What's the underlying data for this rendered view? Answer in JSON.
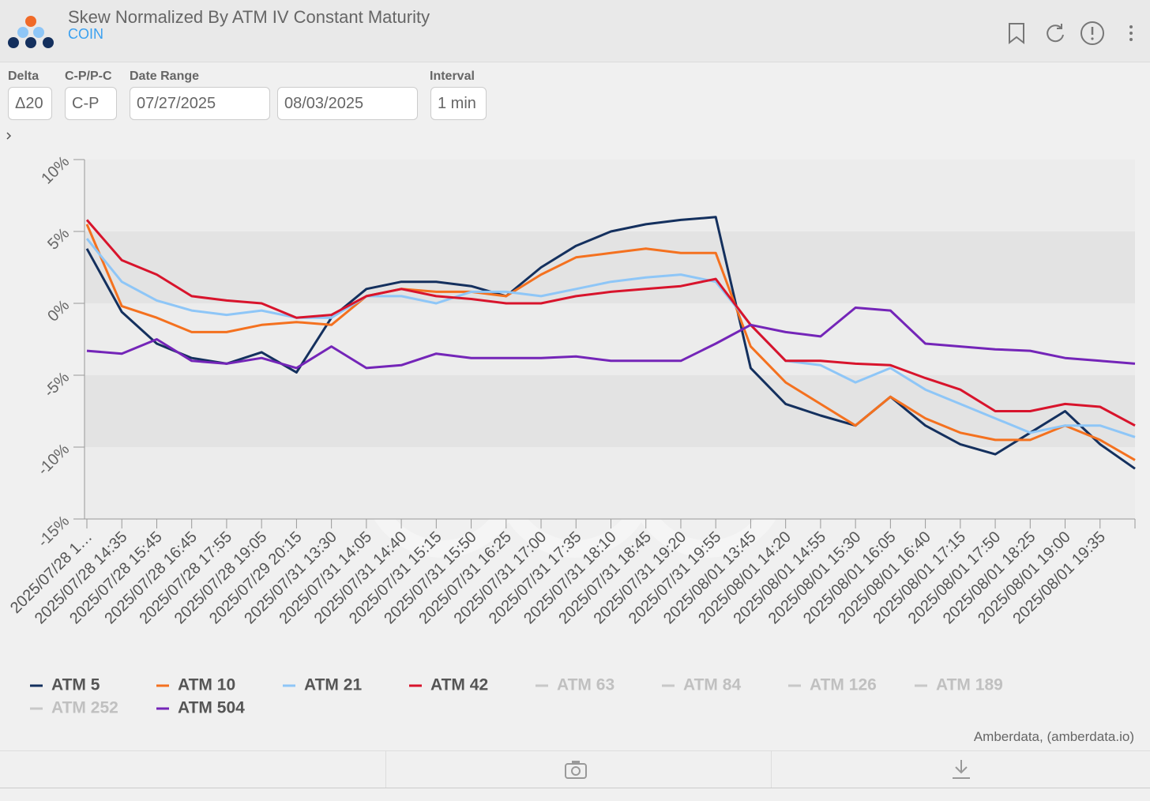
{
  "header": {
    "title": "Skew Normalized By ATM IV Constant Maturity",
    "subtitle": "COIN"
  },
  "controls": [
    {
      "label": "Delta",
      "value": "Δ20"
    },
    {
      "label": "C-P/P-C",
      "value": "C-P"
    },
    {
      "label": "Date Range",
      "value": "07/27/2025"
    },
    {
      "value": "08/03/2025"
    },
    {
      "label": "Interval",
      "value": "1 min"
    }
  ],
  "chart_data": {
    "type": "line",
    "categories": [
      "2025/07/28 1…",
      "2025/07/28 14:35",
      "2025/07/28 15:45",
      "2025/07/28 16:45",
      "2025/07/28 17:55",
      "2025/07/28 19:05",
      "2025/07/29 20:15",
      "2025/07/31 13:30",
      "2025/07/31 14:05",
      "2025/07/31 14:40",
      "2025/07/31 15:15",
      "2025/07/31 15:50",
      "2025/07/31 16:25",
      "2025/07/31 17:00",
      "2025/07/31 17:35",
      "2025/07/31 18:10",
      "2025/07/31 18:45",
      "2025/07/31 19:20",
      "2025/07/31 19:55",
      "2025/08/01 13:45",
      "2025/08/01 14:20",
      "2025/08/01 14:55",
      "2025/08/01 15:30",
      "2025/08/01 16:05",
      "2025/08/01 16:40",
      "2025/08/01 17:15",
      "2025/08/01 17:50",
      "2025/08/01 18:25",
      "2025/08/01 19:00",
      "2025/08/01 19:35",
      null
    ],
    "series": [
      {
        "name": "ATM 5",
        "color": "#14305e",
        "values": [
          3.8,
          -0.6,
          -2.8,
          -3.8,
          -4.2,
          -3.4,
          -4.8,
          -1.0,
          1.0,
          1.5,
          1.5,
          1.2,
          0.5,
          2.5,
          4.0,
          5.0,
          5.5,
          5.8,
          6.0,
          -4.5,
          -7.0,
          -7.8,
          -8.5,
          -6.5,
          -8.5,
          -9.8,
          -10.5,
          -9.0,
          -7.5,
          -9.8,
          -11.5
        ]
      },
      {
        "name": "ATM 10",
        "color": "#f4711f",
        "values": [
          5.5,
          -0.2,
          -1.0,
          -2.0,
          -2.0,
          -1.5,
          -1.3,
          -1.5,
          0.5,
          1.0,
          0.8,
          0.8,
          0.5,
          2.0,
          3.2,
          3.5,
          3.8,
          3.5,
          3.5,
          -3.0,
          -5.5,
          -7.0,
          -8.5,
          -6.5,
          -8.0,
          -9.0,
          -9.5,
          -9.5,
          -8.5,
          -9.5,
          -10.9
        ]
      },
      {
        "name": "ATM 21",
        "color": "#8ec6f7",
        "values": [
          4.5,
          1.5,
          0.2,
          -0.5,
          -0.8,
          -0.5,
          -1.0,
          -1.0,
          0.5,
          0.5,
          0,
          0.8,
          0.8,
          0.5,
          1.0,
          1.5,
          1.8,
          2.0,
          1.5,
          -1.5,
          -4.0,
          -4.3,
          -5.5,
          -4.5,
          -6.0,
          -7.0,
          -8.0,
          -9.0,
          -8.5,
          -8.5,
          -9.3
        ]
      },
      {
        "name": "ATM 42",
        "color": "#d8142c",
        "values": [
          5.8,
          3.0,
          2.0,
          0.5,
          0.2,
          0,
          -1.0,
          -0.8,
          0.5,
          1.0,
          0.5,
          0.3,
          0,
          0,
          0.5,
          0.8,
          1.0,
          1.2,
          1.7,
          -1.5,
          -4.0,
          -4.0,
          -4.2,
          -4.3,
          -5.2,
          -6.0,
          -7.5,
          -7.5,
          -7.0,
          -7.2,
          -8.5
        ]
      },
      {
        "name": "ATM 63",
        "color": "#c8c8c8",
        "visible": false
      },
      {
        "name": "ATM 84",
        "color": "#c8c8c8",
        "visible": false
      },
      {
        "name": "ATM 126",
        "color": "#c8c8c8",
        "visible": false
      },
      {
        "name": "ATM 189",
        "color": "#c8c8c8",
        "visible": false
      },
      {
        "name": "ATM 252",
        "color": "#c8c8c8",
        "visible": false
      },
      {
        "name": "ATM 504",
        "color": "#7425b8",
        "values": [
          -3.3,
          -3.5,
          -2.5,
          -4.0,
          -4.2,
          -3.8,
          -4.5,
          -3.0,
          -4.5,
          -4.3,
          -3.5,
          -3.8,
          -3.8,
          -3.8,
          -3.7,
          -4.0,
          -4.0,
          -4.0,
          -2.8,
          -1.5,
          -2.0,
          -2.3,
          -0.3,
          -0.5,
          -2.8,
          -3.0,
          -3.2,
          -3.3,
          -3.8,
          -4.0,
          -4.2
        ]
      }
    ],
    "ylim": [
      -15,
      10
    ],
    "yticks": [
      {
        "value": -15,
        "label": "-15%"
      },
      {
        "value": -10,
        "label": "-10%"
      },
      {
        "value": -5,
        "label": "-5%"
      },
      {
        "value": 0,
        "label": "0%"
      },
      {
        "value": 5,
        "label": "5%"
      },
      {
        "value": 10,
        "label": "10%"
      }
    ],
    "grid": true,
    "legend": "bottom"
  },
  "credit": "Amberdata, (amberdata.io)"
}
